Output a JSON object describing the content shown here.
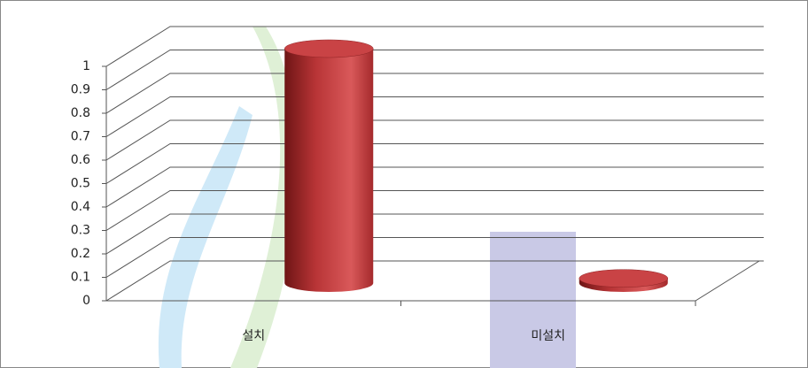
{
  "chart_data": {
    "type": "bar3d",
    "categories": [
      "설치",
      "미설치"
    ],
    "values": [
      1,
      0.02
    ],
    "color": "#c0393b",
    "ylim": [
      0,
      1
    ],
    "yticks": [
      0,
      0.1,
      0.2,
      0.3,
      0.4,
      0.5,
      0.6,
      0.7,
      0.8,
      0.9,
      1
    ],
    "grid": true
  }
}
